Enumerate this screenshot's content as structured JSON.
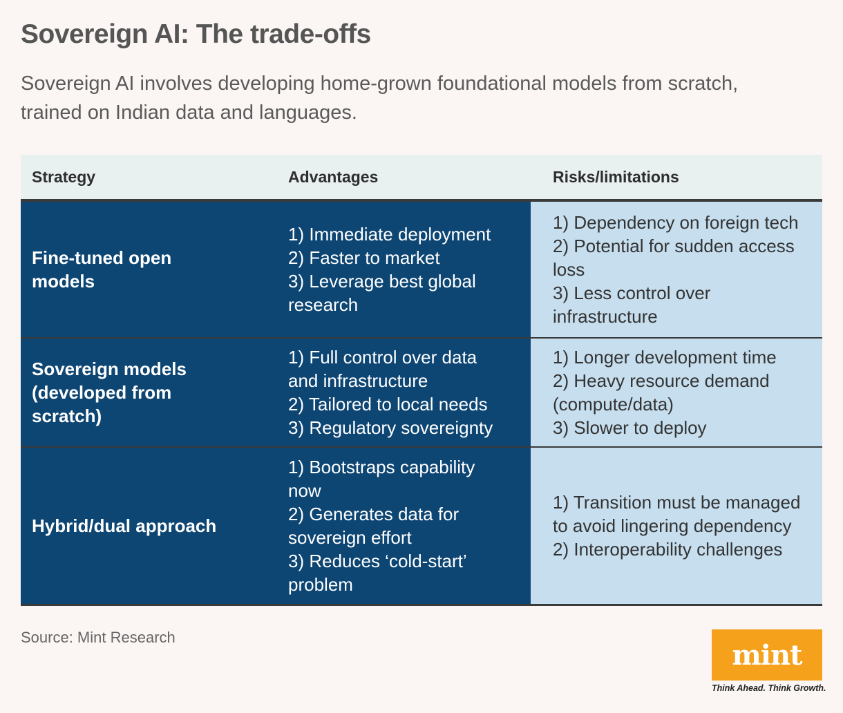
{
  "title": "Sovereign AI: The trade-offs",
  "subtitle_lines": [
    "Sovereign AI involves developing home-grown foundational models from scratch,",
    "trained on Indian data and languages."
  ],
  "table": {
    "headers": [
      "Strategy",
      "Advantages",
      "Risks/limitations"
    ],
    "rows": [
      {
        "strategy": [
          "Fine-tuned open",
          "models"
        ],
        "advantages": [
          "1) Immediate deployment",
          "2) Faster to market",
          "3) Leverage best global",
          "research"
        ],
        "risks": [
          "1) Dependency on foreign tech",
          "2) Potential for sudden access",
          "loss",
          "3) Less control over",
          "infrastructure"
        ]
      },
      {
        "strategy": [
          "Sovereign models",
          "(developed from",
          "scratch)"
        ],
        "advantages": [
          "1) Full control over data",
          "and infrastructure",
          "2) Tailored to local needs",
          "3) Regulatory sovereignty"
        ],
        "risks": [
          "1) Longer development time",
          "2) Heavy resource demand",
          "(compute/data)",
          "3) Slower to deploy"
        ]
      },
      {
        "strategy": [
          "Hybrid/dual approach"
        ],
        "advantages": [
          "1) Bootstraps capability",
          "now",
          "2) Generates data for",
          "sovereign effort",
          "3) Reduces ‘cold-start’",
          "problem"
        ],
        "risks": [
          "1) Transition must be managed",
          "to avoid lingering dependency",
          "2) Interoperability challenges"
        ]
      }
    ]
  },
  "source": "Source: Mint Research",
  "logo": {
    "word": "mint",
    "tagline": "Think Ahead. Think Growth."
  },
  "colors": {
    "dark_cell": "#0d4573",
    "light_cell": "#c6deee",
    "logo_bg": "#f5a11c",
    "header_bg": "#e9f0f0"
  }
}
